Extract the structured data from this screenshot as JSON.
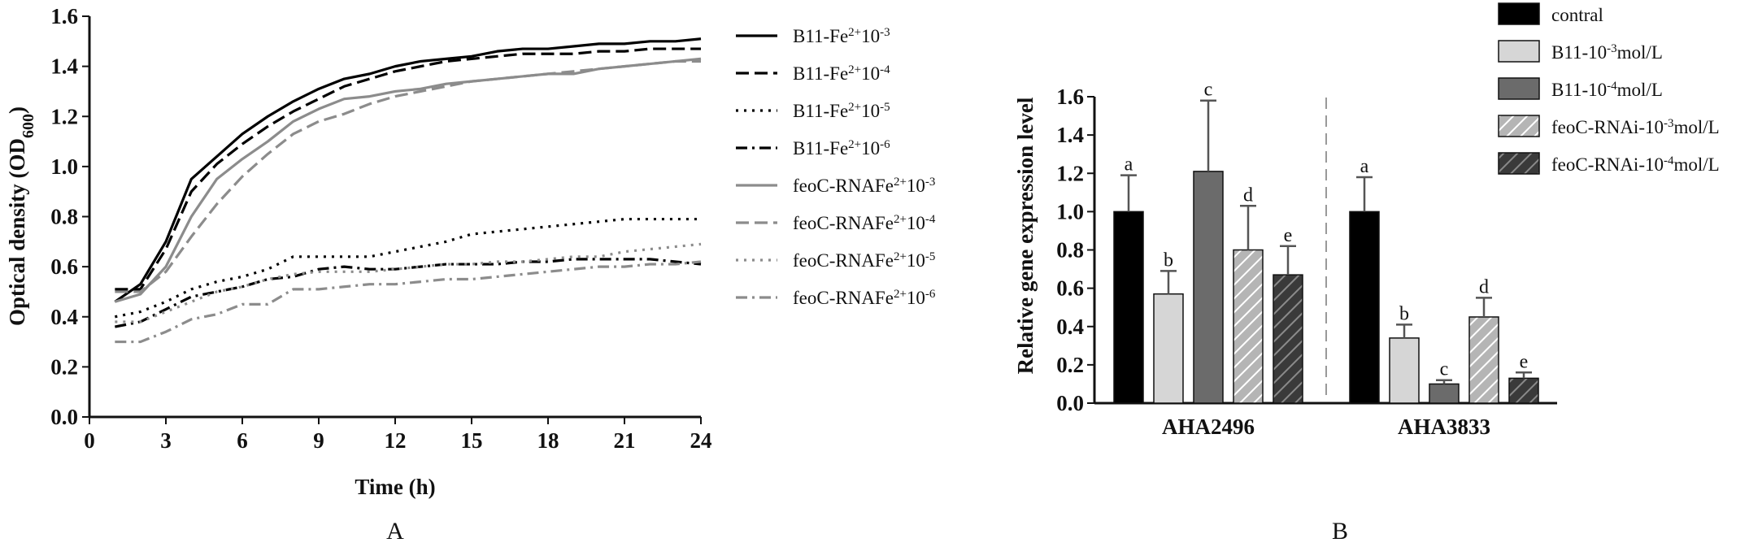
{
  "chart_data": [
    {
      "type": "line",
      "panel_label": "A",
      "xlabel": "Time (h)",
      "ylabel_main": "Optical density (OD",
      "ylabel_sub": "600",
      "ylabel_end": ")",
      "xlim": [
        0,
        24
      ],
      "ylim": [
        0,
        1.6
      ],
      "xticks": [
        "0",
        "3",
        "6",
        "9",
        "12",
        "15",
        "18",
        "21",
        "24"
      ],
      "yticks": [
        "0.0",
        "0.2",
        "0.4",
        "0.6",
        "0.8",
        "1.0",
        "1.2",
        "1.4",
        "1.6"
      ],
      "x": [
        1,
        2,
        3,
        4,
        5,
        6,
        7,
        8,
        9,
        10,
        11,
        12,
        13,
        14,
        15,
        16,
        17,
        18,
        19,
        20,
        21,
        22,
        23,
        24
      ],
      "grid": false,
      "legend_position": "right",
      "series": [
        {
          "name": "B11-Fe²⁺10⁻³",
          "label_main": "B11-Fe",
          "label_sup": "2+",
          "label_mid": "10",
          "label_exp": "-3",
          "color": "#000000",
          "dash": "solid",
          "values": [
            0.46,
            0.53,
            0.7,
            0.95,
            1.04,
            1.13,
            1.2,
            1.26,
            1.31,
            1.35,
            1.37,
            1.4,
            1.42,
            1.43,
            1.44,
            1.46,
            1.47,
            1.47,
            1.48,
            1.49,
            1.49,
            1.5,
            1.5,
            1.51
          ]
        },
        {
          "name": "B11-Fe²⁺10⁻⁴",
          "label_main": "B11-Fe",
          "label_sup": "2+",
          "label_mid": "10",
          "label_exp": "-4",
          "color": "#000000",
          "dash": "dashed",
          "values": [
            0.51,
            0.51,
            0.67,
            0.9,
            1.01,
            1.09,
            1.16,
            1.22,
            1.27,
            1.32,
            1.35,
            1.38,
            1.4,
            1.42,
            1.43,
            1.44,
            1.45,
            1.45,
            1.45,
            1.46,
            1.46,
            1.47,
            1.47,
            1.47
          ]
        },
        {
          "name": "B11-Fe²⁺10⁻⁵",
          "label_main": "B11-Fe",
          "label_sup": "2+",
          "label_mid": "10",
          "label_exp": "-5",
          "color": "#000000",
          "dash": "dotted",
          "values": [
            0.4,
            0.42,
            0.46,
            0.51,
            0.54,
            0.56,
            0.59,
            0.64,
            0.64,
            0.64,
            0.64,
            0.66,
            0.68,
            0.7,
            0.73,
            0.74,
            0.75,
            0.76,
            0.77,
            0.78,
            0.79,
            0.79,
            0.79,
            0.79
          ]
        },
        {
          "name": "B11-Fe²⁺10⁻⁶",
          "label_main": "B11-Fe",
          "label_sup": "2+",
          "label_mid": "10",
          "label_exp": "-6",
          "color": "#000000",
          "dash": "dashdot",
          "values": [
            0.36,
            0.38,
            0.43,
            0.48,
            0.5,
            0.52,
            0.55,
            0.56,
            0.59,
            0.6,
            0.59,
            0.59,
            0.6,
            0.61,
            0.61,
            0.61,
            0.62,
            0.62,
            0.63,
            0.63,
            0.63,
            0.63,
            0.62,
            0.61
          ]
        },
        {
          "name": "feoC-RNAFe²⁺10⁻³",
          "label_main": "feoC-RNAFe",
          "label_sup": "2+",
          "label_mid": "10",
          "label_exp": "-3",
          "color": "#8c8c8c",
          "dash": "solid",
          "values": [
            0.46,
            0.49,
            0.6,
            0.8,
            0.95,
            1.03,
            1.1,
            1.18,
            1.23,
            1.27,
            1.28,
            1.3,
            1.31,
            1.33,
            1.34,
            1.35,
            1.36,
            1.37,
            1.37,
            1.39,
            1.4,
            1.41,
            1.42,
            1.43
          ]
        },
        {
          "name": "feoC-RNAFe²⁺10⁻⁴",
          "label_main": "feoC-RNAFe",
          "label_sup": "2+",
          "label_mid": "10",
          "label_exp": "-4",
          "color": "#8c8c8c",
          "dash": "dashed",
          "values": [
            0.5,
            0.5,
            0.58,
            0.72,
            0.85,
            0.96,
            1.05,
            1.13,
            1.18,
            1.21,
            1.25,
            1.28,
            1.3,
            1.32,
            1.34,
            1.35,
            1.36,
            1.37,
            1.38,
            1.39,
            1.4,
            1.41,
            1.42,
            1.42
          ]
        },
        {
          "name": "feoC-RNAFe²⁺10⁻⁵",
          "label_main": "feoC-RNAFe",
          "label_sup": "2+",
          "label_mid": "10",
          "label_exp": "-5",
          "color": "#8c8c8c",
          "dash": "dotted",
          "values": [
            0.38,
            0.38,
            0.42,
            0.46,
            0.5,
            0.52,
            0.55,
            0.57,
            0.58,
            0.58,
            0.58,
            0.59,
            0.6,
            0.61,
            0.61,
            0.62,
            0.62,
            0.63,
            0.64,
            0.64,
            0.66,
            0.67,
            0.68,
            0.69
          ]
        },
        {
          "name": "feoC-RNAFe²⁺10⁻⁶",
          "label_main": "feoC-RNAFe",
          "label_sup": "2+",
          "label_mid": "10",
          "label_exp": "-6",
          "color": "#8c8c8c",
          "dash": "dashdot",
          "values": [
            0.3,
            0.3,
            0.34,
            0.39,
            0.41,
            0.45,
            0.45,
            0.51,
            0.51,
            0.52,
            0.53,
            0.53,
            0.54,
            0.55,
            0.55,
            0.56,
            0.57,
            0.58,
            0.59,
            0.6,
            0.6,
            0.61,
            0.61,
            0.62
          ]
        }
      ]
    },
    {
      "type": "bar",
      "panel_label": "B",
      "ylabel": "Relative gene expression level",
      "ylim": [
        0,
        1.6
      ],
      "yticks": [
        "0.0",
        "0.2",
        "0.4",
        "0.6",
        "0.8",
        "1.0",
        "1.2",
        "1.4",
        "1.6"
      ],
      "categories": [
        "AHA2496",
        "AHA3833"
      ],
      "grid": false,
      "legend_position": "top-right",
      "series": [
        {
          "name": "contral",
          "label_main": "contral",
          "label_exp": "",
          "label_end": "",
          "fill": "#000000",
          "hatch": false,
          "values": [
            1.0,
            1.0
          ],
          "errors": [
            0.19,
            0.18
          ],
          "sig": [
            "a",
            "a"
          ]
        },
        {
          "name": "B11-10⁻³mol/L",
          "label_main": "B11-10",
          "label_exp": "-3",
          "label_end": "mol/L",
          "fill": "#d6d6d6",
          "hatch": false,
          "values": [
            0.57,
            0.34
          ],
          "errors": [
            0.12,
            0.07
          ],
          "sig": [
            "b",
            "b"
          ]
        },
        {
          "name": "B11-10⁻⁴mol/L",
          "label_main": "B11-10",
          "label_exp": "-4",
          "label_end": "mol/L",
          "fill": "#6b6b6b",
          "hatch": false,
          "values": [
            1.21,
            0.1
          ],
          "errors": [
            0.37,
            0.02
          ],
          "sig": [
            "c",
            "c"
          ]
        },
        {
          "name": "feoC-RNAi-10⁻³mol/L",
          "label_main": "feoC-RNAi-10",
          "label_exp": "-3",
          "label_end": "mol/L",
          "fill": "#b5b5b5",
          "hatch": true,
          "values": [
            0.8,
            0.45
          ],
          "errors": [
            0.23,
            0.1
          ],
          "sig": [
            "d",
            "d"
          ]
        },
        {
          "name": "feoC-RNAi-10⁻⁴mol/L",
          "label_main": "feoC-RNAi-10",
          "label_exp": "-4",
          "label_end": "mol/L",
          "fill": "#3a3a3a",
          "hatch": true,
          "values": [
            0.67,
            0.13
          ],
          "errors": [
            0.15,
            0.03
          ],
          "sig": [
            "e",
            "e"
          ]
        }
      ]
    }
  ]
}
